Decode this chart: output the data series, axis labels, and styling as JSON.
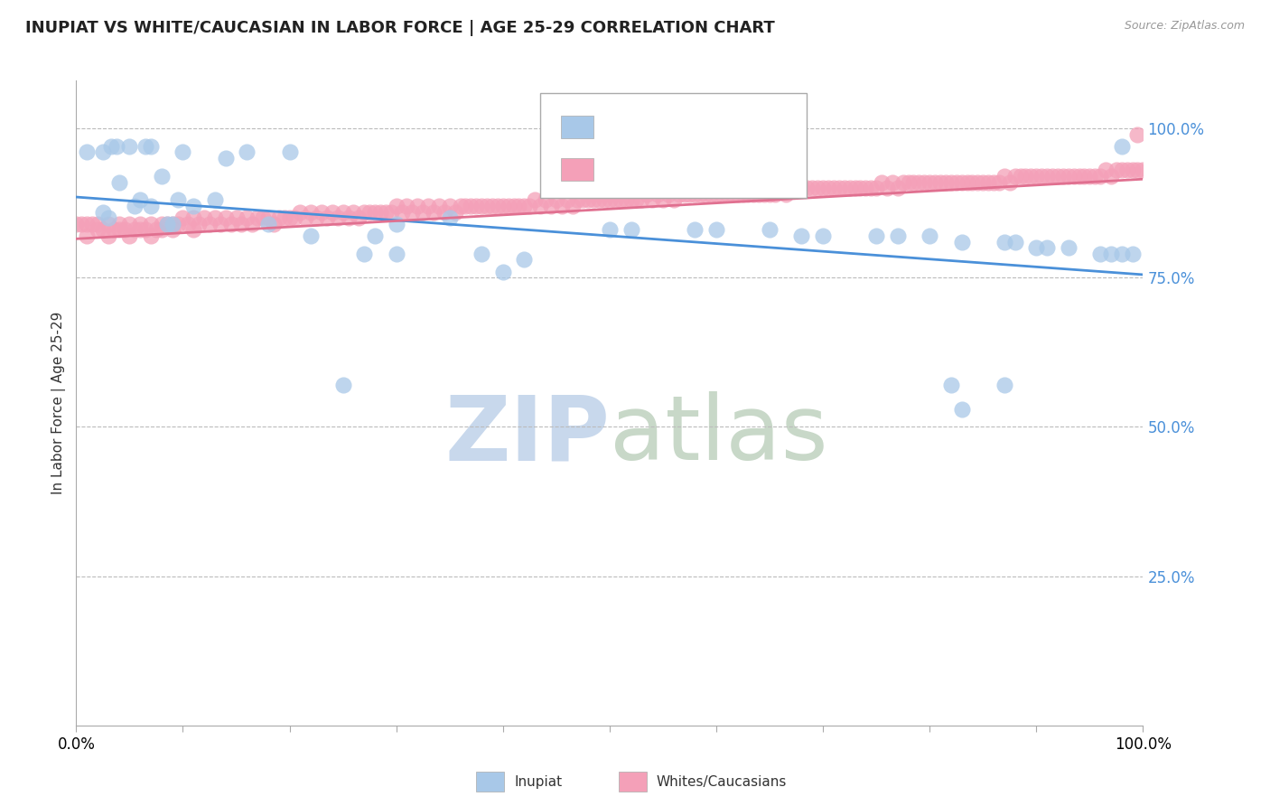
{
  "title": "INUPIAT VS WHITE/CAUCASIAN IN LABOR FORCE | AGE 25-29 CORRELATION CHART",
  "source": "Source: ZipAtlas.com",
  "ylabel": "In Labor Force | Age 25-29",
  "xlim": [
    0.0,
    1.0
  ],
  "ylim": [
    0.0,
    1.08
  ],
  "inupiat_color": "#a8c8e8",
  "white_color": "#f4a0b8",
  "inupiat_line_color": "#4a90d9",
  "white_line_color": "#e07090",
  "background_color": "#ffffff",
  "grid_color": "#bbbbbb",
  "watermark_zip_color": "#c8d8ec",
  "watermark_atlas_color": "#c8d8c8",
  "title_fontsize": 13,
  "axis_label_fontsize": 11,
  "tick_fontsize": 12,
  "inupiat_line_slope": -0.13,
  "inupiat_line_intercept": 0.885,
  "white_line_slope": 0.1,
  "white_line_intercept": 0.815,
  "inupiat_data": [
    [
      0.01,
      0.96
    ],
    [
      0.025,
      0.96
    ],
    [
      0.033,
      0.97
    ],
    [
      0.038,
      0.97
    ],
    [
      0.05,
      0.97
    ],
    [
      0.065,
      0.97
    ],
    [
      0.07,
      0.97
    ],
    [
      0.1,
      0.96
    ],
    [
      0.14,
      0.95
    ],
    [
      0.16,
      0.96
    ],
    [
      0.2,
      0.96
    ],
    [
      0.08,
      0.92
    ],
    [
      0.095,
      0.88
    ],
    [
      0.04,
      0.91
    ],
    [
      0.06,
      0.88
    ],
    [
      0.03,
      0.85
    ],
    [
      0.055,
      0.87
    ],
    [
      0.025,
      0.86
    ],
    [
      0.07,
      0.87
    ],
    [
      0.085,
      0.84
    ],
    [
      0.09,
      0.84
    ],
    [
      0.11,
      0.87
    ],
    [
      0.13,
      0.88
    ],
    [
      0.18,
      0.84
    ],
    [
      0.22,
      0.82
    ],
    [
      0.28,
      0.82
    ],
    [
      0.3,
      0.84
    ],
    [
      0.35,
      0.85
    ],
    [
      0.27,
      0.79
    ],
    [
      0.3,
      0.79
    ],
    [
      0.38,
      0.79
    ],
    [
      0.25,
      0.57
    ],
    [
      0.4,
      0.76
    ],
    [
      0.42,
      0.78
    ],
    [
      0.5,
      0.83
    ],
    [
      0.52,
      0.83
    ],
    [
      0.58,
      0.83
    ],
    [
      0.6,
      0.83
    ],
    [
      0.65,
      0.83
    ],
    [
      0.68,
      0.82
    ],
    [
      0.7,
      0.82
    ],
    [
      0.75,
      0.82
    ],
    [
      0.77,
      0.82
    ],
    [
      0.8,
      0.82
    ],
    [
      0.83,
      0.81
    ],
    [
      0.87,
      0.81
    ],
    [
      0.88,
      0.81
    ],
    [
      0.9,
      0.8
    ],
    [
      0.91,
      0.8
    ],
    [
      0.93,
      0.8
    ],
    [
      0.96,
      0.79
    ],
    [
      0.97,
      0.79
    ],
    [
      0.98,
      0.79
    ],
    [
      0.99,
      0.79
    ],
    [
      0.98,
      0.97
    ],
    [
      0.82,
      0.57
    ],
    [
      0.83,
      0.53
    ],
    [
      0.87,
      0.57
    ]
  ],
  "white_data": [
    [
      0.0,
      0.84
    ],
    [
      0.005,
      0.84
    ],
    [
      0.01,
      0.84
    ],
    [
      0.015,
      0.84
    ],
    [
      0.02,
      0.84
    ],
    [
      0.025,
      0.83
    ],
    [
      0.03,
      0.84
    ],
    [
      0.035,
      0.83
    ],
    [
      0.04,
      0.84
    ],
    [
      0.045,
      0.83
    ],
    [
      0.05,
      0.84
    ],
    [
      0.055,
      0.83
    ],
    [
      0.06,
      0.84
    ],
    [
      0.065,
      0.83
    ],
    [
      0.07,
      0.84
    ],
    [
      0.075,
      0.83
    ],
    [
      0.08,
      0.84
    ],
    [
      0.085,
      0.84
    ],
    [
      0.09,
      0.84
    ],
    [
      0.095,
      0.84
    ],
    [
      0.1,
      0.85
    ],
    [
      0.105,
      0.84
    ],
    [
      0.11,
      0.85
    ],
    [
      0.115,
      0.84
    ],
    [
      0.12,
      0.85
    ],
    [
      0.125,
      0.84
    ],
    [
      0.13,
      0.85
    ],
    [
      0.135,
      0.84
    ],
    [
      0.14,
      0.85
    ],
    [
      0.145,
      0.84
    ],
    [
      0.15,
      0.85
    ],
    [
      0.155,
      0.84
    ],
    [
      0.16,
      0.85
    ],
    [
      0.165,
      0.84
    ],
    [
      0.17,
      0.85
    ],
    [
      0.175,
      0.85
    ],
    [
      0.18,
      0.85
    ],
    [
      0.185,
      0.84
    ],
    [
      0.19,
      0.85
    ],
    [
      0.195,
      0.85
    ],
    [
      0.2,
      0.85
    ],
    [
      0.205,
      0.85
    ],
    [
      0.21,
      0.86
    ],
    [
      0.215,
      0.85
    ],
    [
      0.22,
      0.86
    ],
    [
      0.225,
      0.85
    ],
    [
      0.23,
      0.86
    ],
    [
      0.235,
      0.85
    ],
    [
      0.24,
      0.86
    ],
    [
      0.245,
      0.85
    ],
    [
      0.25,
      0.86
    ],
    [
      0.255,
      0.85
    ],
    [
      0.26,
      0.86
    ],
    [
      0.265,
      0.85
    ],
    [
      0.27,
      0.86
    ],
    [
      0.275,
      0.86
    ],
    [
      0.28,
      0.86
    ],
    [
      0.285,
      0.86
    ],
    [
      0.29,
      0.86
    ],
    [
      0.295,
      0.86
    ],
    [
      0.3,
      0.87
    ],
    [
      0.305,
      0.86
    ],
    [
      0.31,
      0.87
    ],
    [
      0.315,
      0.86
    ],
    [
      0.32,
      0.87
    ],
    [
      0.325,
      0.86
    ],
    [
      0.33,
      0.87
    ],
    [
      0.335,
      0.86
    ],
    [
      0.34,
      0.87
    ],
    [
      0.345,
      0.86
    ],
    [
      0.35,
      0.87
    ],
    [
      0.355,
      0.86
    ],
    [
      0.36,
      0.87
    ],
    [
      0.365,
      0.87
    ],
    [
      0.37,
      0.87
    ],
    [
      0.375,
      0.87
    ],
    [
      0.38,
      0.87
    ],
    [
      0.385,
      0.87
    ],
    [
      0.39,
      0.87
    ],
    [
      0.395,
      0.87
    ],
    [
      0.4,
      0.87
    ],
    [
      0.405,
      0.87
    ],
    [
      0.41,
      0.87
    ],
    [
      0.415,
      0.87
    ],
    [
      0.42,
      0.87
    ],
    [
      0.425,
      0.87
    ],
    [
      0.43,
      0.88
    ],
    [
      0.435,
      0.87
    ],
    [
      0.44,
      0.88
    ],
    [
      0.445,
      0.87
    ],
    [
      0.45,
      0.88
    ],
    [
      0.455,
      0.87
    ],
    [
      0.46,
      0.88
    ],
    [
      0.465,
      0.87
    ],
    [
      0.47,
      0.88
    ],
    [
      0.475,
      0.88
    ],
    [
      0.48,
      0.88
    ],
    [
      0.485,
      0.88
    ],
    [
      0.49,
      0.88
    ],
    [
      0.495,
      0.88
    ],
    [
      0.5,
      0.88
    ],
    [
      0.505,
      0.88
    ],
    [
      0.51,
      0.88
    ],
    [
      0.515,
      0.88
    ],
    [
      0.52,
      0.88
    ],
    [
      0.525,
      0.88
    ],
    [
      0.53,
      0.88
    ],
    [
      0.535,
      0.89
    ],
    [
      0.54,
      0.88
    ],
    [
      0.545,
      0.89
    ],
    [
      0.55,
      0.88
    ],
    [
      0.555,
      0.89
    ],
    [
      0.56,
      0.88
    ],
    [
      0.565,
      0.89
    ],
    [
      0.57,
      0.89
    ],
    [
      0.575,
      0.89
    ],
    [
      0.58,
      0.89
    ],
    [
      0.585,
      0.89
    ],
    [
      0.59,
      0.89
    ],
    [
      0.595,
      0.89
    ],
    [
      0.6,
      0.89
    ],
    [
      0.605,
      0.89
    ],
    [
      0.61,
      0.89
    ],
    [
      0.615,
      0.89
    ],
    [
      0.62,
      0.89
    ],
    [
      0.625,
      0.89
    ],
    [
      0.63,
      0.89
    ],
    [
      0.635,
      0.89
    ],
    [
      0.64,
      0.89
    ],
    [
      0.645,
      0.89
    ],
    [
      0.65,
      0.89
    ],
    [
      0.655,
      0.89
    ],
    [
      0.66,
      0.9
    ],
    [
      0.665,
      0.89
    ],
    [
      0.67,
      0.9
    ],
    [
      0.675,
      0.9
    ],
    [
      0.68,
      0.9
    ],
    [
      0.685,
      0.9
    ],
    [
      0.69,
      0.9
    ],
    [
      0.695,
      0.9
    ],
    [
      0.7,
      0.9
    ],
    [
      0.705,
      0.9
    ],
    [
      0.71,
      0.9
    ],
    [
      0.715,
      0.9
    ],
    [
      0.72,
      0.9
    ],
    [
      0.725,
      0.9
    ],
    [
      0.73,
      0.9
    ],
    [
      0.735,
      0.9
    ],
    [
      0.74,
      0.9
    ],
    [
      0.745,
      0.9
    ],
    [
      0.75,
      0.9
    ],
    [
      0.755,
      0.91
    ],
    [
      0.76,
      0.9
    ],
    [
      0.765,
      0.91
    ],
    [
      0.77,
      0.9
    ],
    [
      0.775,
      0.91
    ],
    [
      0.78,
      0.91
    ],
    [
      0.785,
      0.91
    ],
    [
      0.79,
      0.91
    ],
    [
      0.795,
      0.91
    ],
    [
      0.8,
      0.91
    ],
    [
      0.805,
      0.91
    ],
    [
      0.81,
      0.91
    ],
    [
      0.815,
      0.91
    ],
    [
      0.82,
      0.91
    ],
    [
      0.825,
      0.91
    ],
    [
      0.83,
      0.91
    ],
    [
      0.835,
      0.91
    ],
    [
      0.84,
      0.91
    ],
    [
      0.845,
      0.91
    ],
    [
      0.85,
      0.91
    ],
    [
      0.855,
      0.91
    ],
    [
      0.86,
      0.91
    ],
    [
      0.865,
      0.91
    ],
    [
      0.87,
      0.92
    ],
    [
      0.875,
      0.91
    ],
    [
      0.88,
      0.92
    ],
    [
      0.885,
      0.92
    ],
    [
      0.89,
      0.92
    ],
    [
      0.895,
      0.92
    ],
    [
      0.9,
      0.92
    ],
    [
      0.905,
      0.92
    ],
    [
      0.91,
      0.92
    ],
    [
      0.915,
      0.92
    ],
    [
      0.92,
      0.92
    ],
    [
      0.925,
      0.92
    ],
    [
      0.93,
      0.92
    ],
    [
      0.935,
      0.92
    ],
    [
      0.94,
      0.92
    ],
    [
      0.945,
      0.92
    ],
    [
      0.95,
      0.92
    ],
    [
      0.955,
      0.92
    ],
    [
      0.96,
      0.92
    ],
    [
      0.965,
      0.93
    ],
    [
      0.97,
      0.92
    ],
    [
      0.975,
      0.93
    ],
    [
      0.98,
      0.93
    ],
    [
      0.985,
      0.93
    ],
    [
      0.99,
      0.93
    ],
    [
      0.995,
      0.93
    ],
    [
      1.0,
      0.93
    ],
    [
      0.01,
      0.82
    ],
    [
      0.03,
      0.82
    ],
    [
      0.05,
      0.82
    ],
    [
      0.07,
      0.82
    ],
    [
      0.09,
      0.83
    ],
    [
      0.11,
      0.83
    ],
    [
      0.02,
      0.83
    ],
    [
      0.04,
      0.83
    ],
    [
      0.06,
      0.83
    ],
    [
      0.08,
      0.83
    ],
    [
      0.995,
      0.99
    ]
  ]
}
